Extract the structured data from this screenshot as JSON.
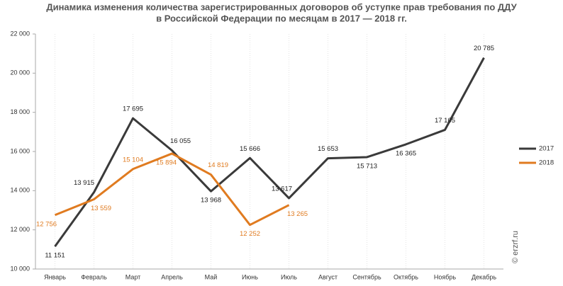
{
  "chart_data": {
    "type": "line",
    "title": [
      "Динамика изменения количества зарегистрированных договоров об уступке прав требования по ДДУ",
      "в Российской Федерации по месяцам в 2017 — 2018 гг."
    ],
    "watermark": "© erzrf.ru",
    "categories": [
      "Январь",
      "Февраль",
      "Март",
      "Апрель",
      "Май",
      "Июнь",
      "Июль",
      "Август",
      "Сентябрь",
      "Октябрь",
      "Ноябрь",
      "Декабрь"
    ],
    "series": [
      {
        "name": "2017",
        "color": "#3a3a3a",
        "values": [
          11151,
          13915,
          17695,
          16055,
          13968,
          15666,
          13617,
          15653,
          15713,
          16365,
          17105,
          20785
        ],
        "value_labels": [
          "11 151",
          "13 915",
          "17 695",
          "16 055",
          "13 968",
          "15 666",
          "13 617",
          "15 653",
          "15 713",
          "16 365",
          "17 105",
          "20 785"
        ]
      },
      {
        "name": "2018",
        "color": "#e07b20",
        "values": [
          12756,
          13559,
          15104,
          15894,
          14819,
          12252,
          13265,
          null,
          null,
          null,
          null,
          null
        ],
        "value_labels": [
          "12 756",
          "13 559",
          "15 104",
          "15 894",
          "14 819",
          "12 252",
          "13 265",
          null,
          null,
          null,
          null,
          null
        ]
      }
    ],
    "ylim": [
      10000,
      22000
    ],
    "yticks": [
      {
        "value": 10000,
        "label": "10 000"
      },
      {
        "value": 12000,
        "label": "12 000"
      },
      {
        "value": 14000,
        "label": "14 000"
      },
      {
        "value": 16000,
        "label": "16 000"
      },
      {
        "value": 18000,
        "label": "18 000"
      },
      {
        "value": 20000,
        "label": "20 000"
      },
      {
        "value": 22000,
        "label": "22 000"
      }
    ],
    "legend": "right"
  }
}
